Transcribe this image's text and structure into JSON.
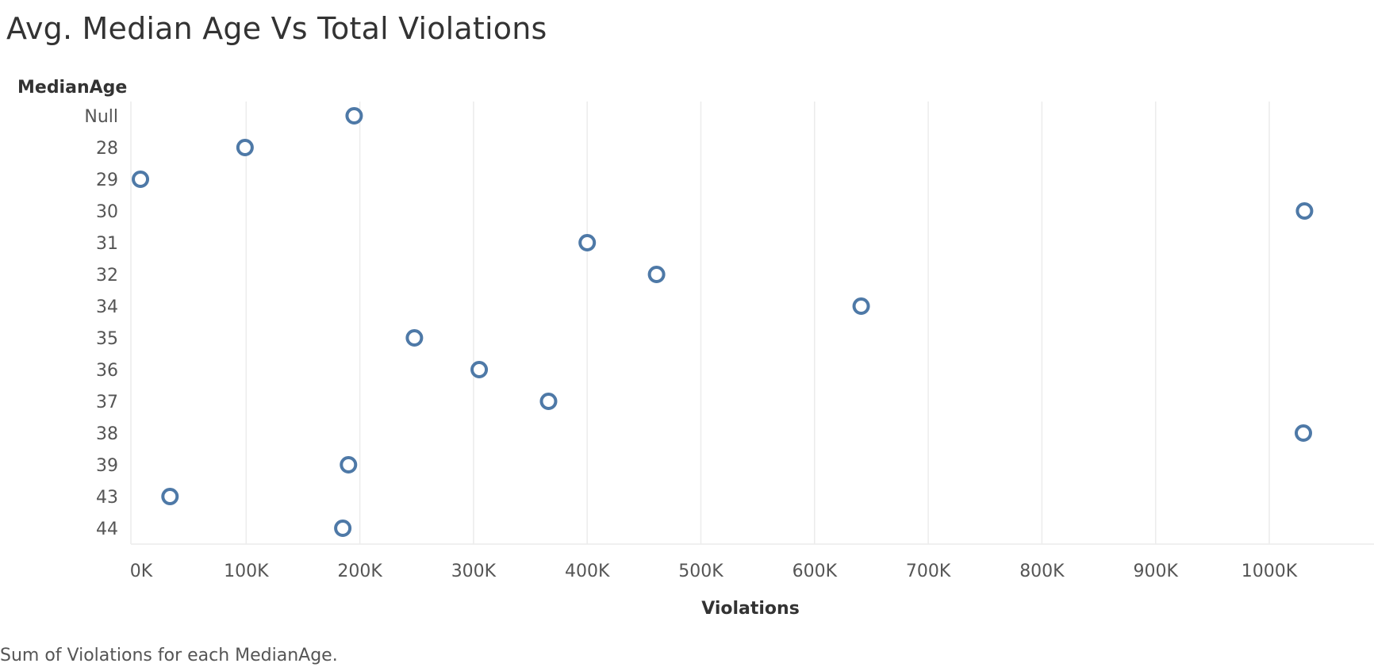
{
  "title": "Avg. Median Age Vs Total Violations",
  "caption": "Sum of Violations for each MedianAge.",
  "colors": {
    "marker": "#4e79a7",
    "gridline": "#ececec",
    "text": "#555555"
  },
  "chart_data": {
    "type": "scatter",
    "title": "Avg. Median Age Vs Total Violations",
    "xlabel": "Violations",
    "ylabel": "MedianAge",
    "xlim": [
      0,
      1080000
    ],
    "x_ticks": [
      0,
      100000,
      200000,
      300000,
      400000,
      500000,
      600000,
      700000,
      800000,
      900000,
      1000000
    ],
    "x_tick_labels": [
      "0K",
      "100K",
      "200K",
      "300K",
      "400K",
      "500K",
      "600K",
      "700K",
      "800K",
      "900K",
      "1000K"
    ],
    "categories": [
      "Null",
      "28",
      "29",
      "30",
      "31",
      "32",
      "34",
      "35",
      "36",
      "37",
      "38",
      "39",
      "43",
      "44"
    ],
    "values": [
      195000,
      99000,
      7000,
      1031000,
      400000,
      461000,
      641000,
      248000,
      305000,
      366000,
      1030000,
      190000,
      33000,
      185000
    ],
    "marker": "open-circle",
    "grid": "vertical",
    "legend": "none"
  }
}
